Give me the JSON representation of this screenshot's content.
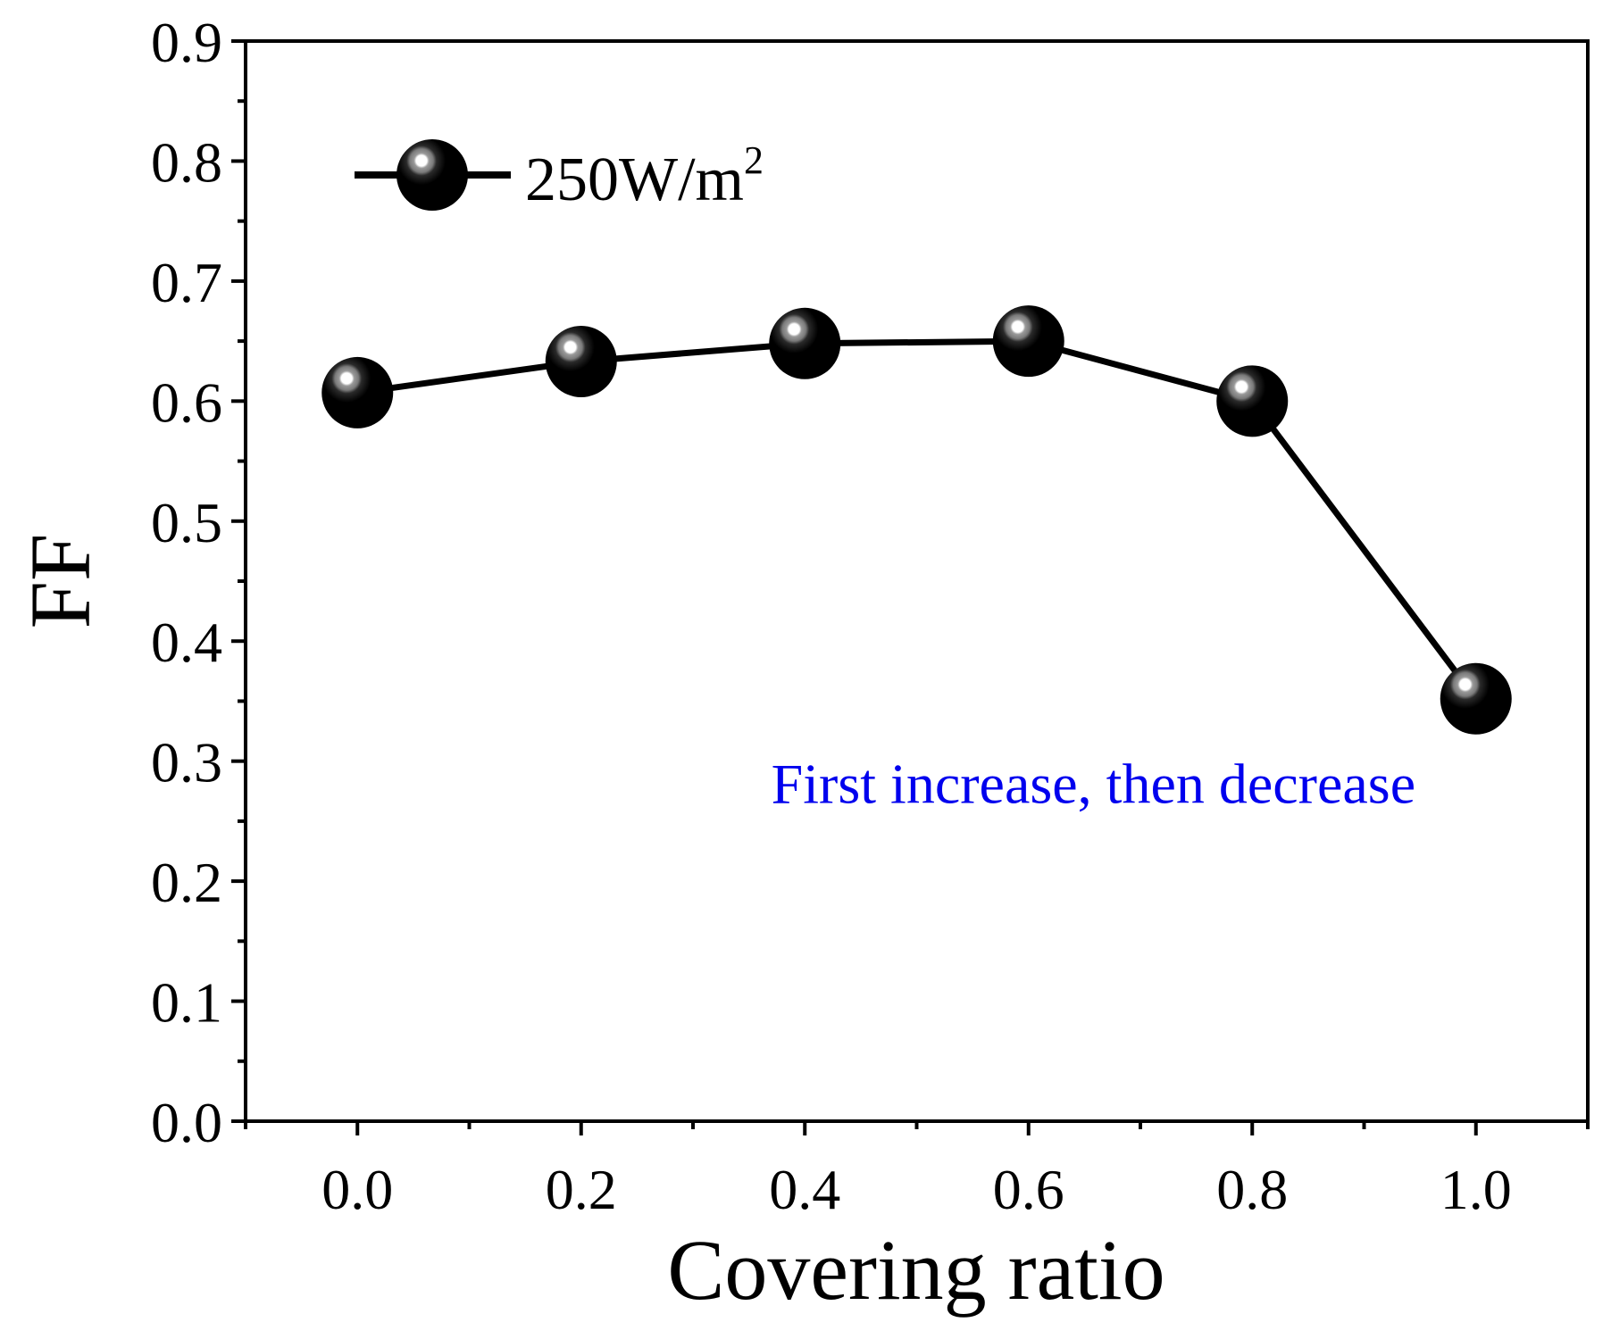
{
  "chart_data": {
    "type": "line",
    "title": "",
    "xlabel": "Covering ratio",
    "ylabel": "FF",
    "xlim": [
      -0.1,
      1.1
    ],
    "ylim": [
      0.0,
      0.9
    ],
    "x_ticks": [
      0.0,
      0.2,
      0.4,
      0.6,
      0.8,
      1.0
    ],
    "x_tick_labels": [
      "0.0",
      "0.2",
      "0.4",
      "0.6",
      "0.8",
      "1.0"
    ],
    "y_ticks": [
      0.0,
      0.1,
      0.2,
      0.3,
      0.4,
      0.5,
      0.6,
      0.7,
      0.8,
      0.9
    ],
    "y_tick_labels": [
      "0.0",
      "0.1",
      "0.2",
      "0.3",
      "0.4",
      "0.5",
      "0.6",
      "0.7",
      "0.8",
      "0.9"
    ],
    "grid": false,
    "legend_position": "top-left",
    "series": [
      {
        "name": "250W/m",
        "name_superscript": "2",
        "color": "#000000",
        "x": [
          0.0,
          0.2,
          0.4,
          0.6,
          0.8,
          1.0
        ],
        "y": [
          0.607,
          0.633,
          0.648,
          0.65,
          0.6,
          0.352
        ]
      }
    ],
    "annotations": [
      {
        "text": "First increase, then decrease",
        "color": "#0000ee",
        "x": 0.37,
        "y": 0.265
      }
    ]
  }
}
